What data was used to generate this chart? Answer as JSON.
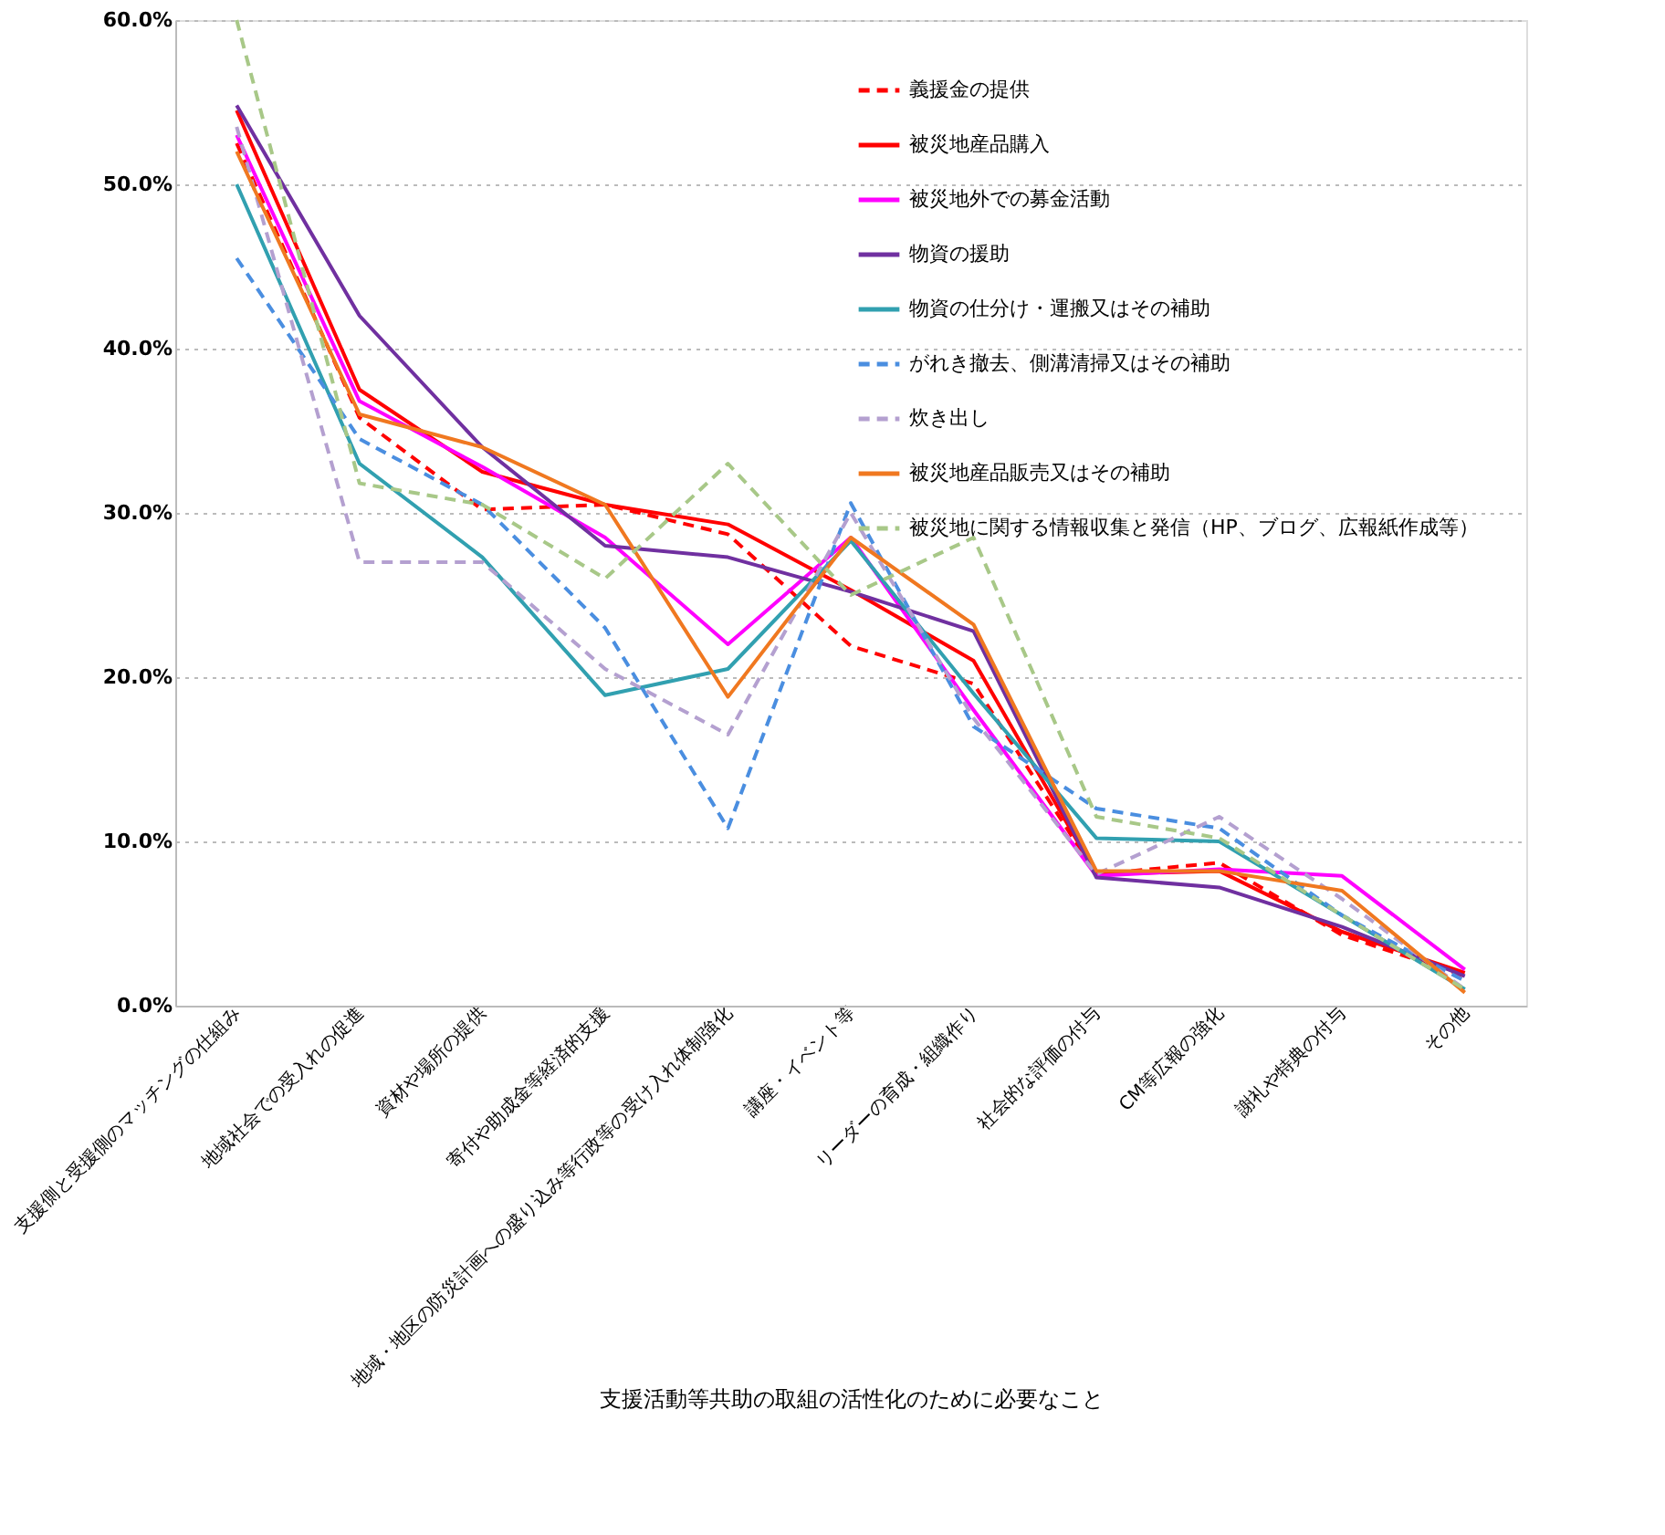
{
  "chart_data": {
    "type": "line",
    "xlabel": "支援活動等共助の取組の活性化のために必要なこと",
    "categories": [
      "支援側と受援側のマッチングの仕組み",
      "地域社会での受入れの促進",
      "資材や場所の提供",
      "寄付や助成金等経済的支援",
      "地域・地区の防災計画への盛り込み等行政等の受け入れ体制強化",
      "講座・イベント等",
      "リーダーの育成・組織作り",
      "社会的な評価の付与",
      "CM等広報の強化",
      "謝礼や特典の付与",
      "その他"
    ],
    "ylim": [
      0,
      60
    ],
    "yticks": [
      {
        "value": 0,
        "label": "0.0%"
      },
      {
        "value": 10,
        "label": "10.0%"
      },
      {
        "value": 20,
        "label": "20.0%"
      },
      {
        "value": 30,
        "label": "30.0%"
      },
      {
        "value": 40,
        "label": "40.0%"
      },
      {
        "value": 50,
        "label": "50.0%"
      },
      {
        "value": 60,
        "label": "60.0%"
      }
    ],
    "grid": "y",
    "legend": "top right",
    "series": [
      {
        "name": "義援金の提供",
        "color": "#ff0000",
        "line_style": "dashed",
        "values": [
          52.5,
          35.8,
          30.2,
          30.5,
          28.7,
          21.9,
          19.6,
          8.0,
          8.7,
          4.3,
          1.8
        ]
      },
      {
        "name": "被災地産品購入",
        "color": "#ff0000",
        "line_style": "solid",
        "values": [
          54.5,
          37.5,
          32.5,
          30.5,
          29.3,
          25.3,
          21.0,
          8.0,
          8.2,
          4.5,
          2.0
        ]
      },
      {
        "name": "被災地外での募金活動",
        "color": "#ff00ff",
        "line_style": "solid",
        "values": [
          53.0,
          36.8,
          32.8,
          28.5,
          22.0,
          28.5,
          18.0,
          7.9,
          8.3,
          7.9,
          2.2
        ]
      },
      {
        "name": "物資の援助",
        "color": "#7030a0",
        "line_style": "solid",
        "values": [
          54.8,
          42.0,
          34.0,
          28.0,
          27.3,
          25.2,
          22.8,
          7.8,
          7.2,
          4.8,
          1.8
        ]
      },
      {
        "name": "物資の仕分け・運搬又はその補助",
        "color": "#31a0b0",
        "line_style": "solid",
        "values": [
          50.0,
          33.0,
          27.3,
          18.9,
          20.5,
          28.3,
          19.0,
          10.2,
          10.0,
          5.5,
          1.0
        ]
      },
      {
        "name": "がれき撤去、側溝清掃又はその補助",
        "color": "#4a8ee0",
        "line_style": "dashed",
        "values": [
          45.5,
          34.5,
          30.5,
          23.0,
          10.8,
          30.6,
          17.0,
          12.0,
          10.8,
          5.5,
          1.5
        ]
      },
      {
        "name": "炊き出し",
        "color": "#b4a0d0",
        "line_style": "dashed",
        "values": [
          53.5,
          27.0,
          27.0,
          20.5,
          16.5,
          30.0,
          17.5,
          8.0,
          11.5,
          6.5,
          1.0
        ]
      },
      {
        "name": "被災地産品販売又はその補助",
        "color": "#f07820",
        "line_style": "solid",
        "values": [
          52.0,
          36.0,
          34.0,
          30.5,
          18.8,
          28.5,
          23.2,
          8.2,
          8.2,
          7.0,
          0.8
        ]
      },
      {
        "name": "被災地に関する情報収集と発信（HP、ブログ、広報紙作成等）",
        "color": "#a8c888",
        "line_style": "dashed",
        "values": [
          60.0,
          31.8,
          30.5,
          26.0,
          33.0,
          25.0,
          28.5,
          11.5,
          10.2,
          5.5,
          1.0
        ]
      }
    ]
  }
}
